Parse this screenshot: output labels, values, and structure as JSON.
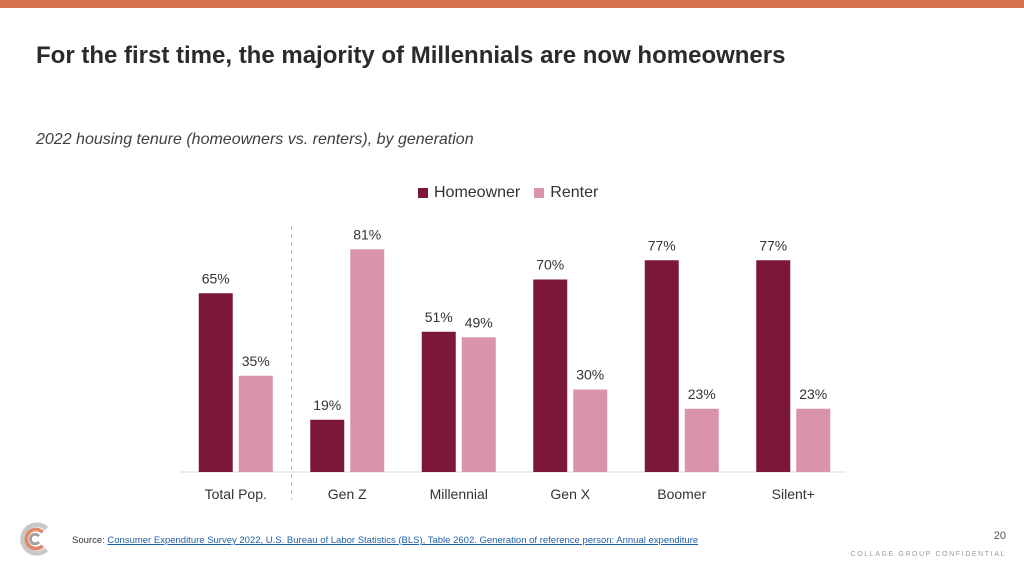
{
  "header": {
    "title": "For the first time, the majority of Millennials are now homeowners",
    "subtitle": "2022 housing tenure (homeowners vs. renters), by generation"
  },
  "footer": {
    "source_prefix": "Source: ",
    "source_link": "Consumer Expenditure Survey 2022, U.S. Bureau of Labor Statistics (BLS), Table 2602. Generation of reference person: Annual expenditure",
    "page_number": "20",
    "confidential": "COLLAGE GROUP CONFIDENTIAL"
  },
  "colors": {
    "accent_bar": "#d4714f",
    "homeowner": "#7b1838",
    "renter": "#d994aa"
  },
  "chart_data": {
    "type": "bar",
    "title": "2022 housing tenure (homeowners vs. renters), by generation",
    "categories": [
      "Total Pop.",
      "Gen Z",
      "Millennial",
      "Gen X",
      "Boomer",
      "Silent+"
    ],
    "series": [
      {
        "name": "Homeowner",
        "values": [
          65,
          19,
          51,
          70,
          77,
          77
        ],
        "labels": [
          "65%",
          "19%",
          "51%",
          "70%",
          "77%",
          "77%"
        ]
      },
      {
        "name": "Renter",
        "values": [
          35,
          81,
          49,
          30,
          23,
          23
        ],
        "labels": [
          "35%",
          "81%",
          "49%",
          "30%",
          "23%",
          "23%"
        ]
      }
    ],
    "ylim": [
      0,
      100
    ],
    "unit": "%",
    "legend": "top",
    "grid": false,
    "separator_after_category": "Total Pop."
  }
}
